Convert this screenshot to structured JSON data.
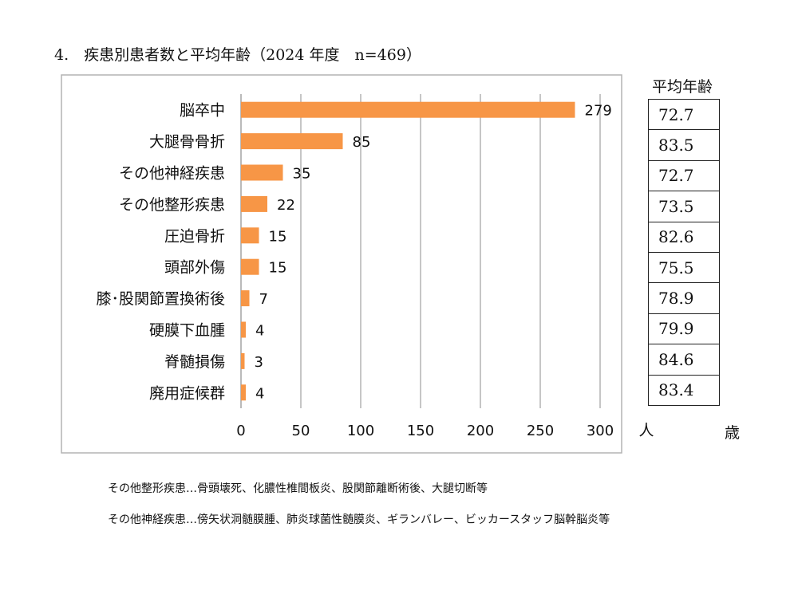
{
  "title": "4.　疾患別患者数と平均年齢（2024 年度　n=469）",
  "chart_data": {
    "type": "bar",
    "orientation": "horizontal",
    "categories": [
      "脳卒中",
      "大腿骨骨折",
      "その他神経疾患",
      "その他整形疾患",
      "圧迫骨折",
      "頭部外傷",
      "膝･股関節置換術後",
      "硬膜下血腫",
      "脊髄損傷",
      "廃用症候群"
    ],
    "values": [
      279,
      85,
      35,
      22,
      15,
      15,
      7,
      4,
      3,
      4
    ],
    "xlim": [
      0,
      300
    ],
    "x_ticks": [
      0,
      50,
      100,
      150,
      200,
      250,
      300
    ],
    "x_unit": "人",
    "bar_color": "#f79646",
    "grid": true,
    "legend": "none"
  },
  "age_table": {
    "header": "平均年齢",
    "values": [
      "72.7",
      "83.5",
      "72.7",
      "73.5",
      "82.6",
      "75.5",
      "78.9",
      "79.9",
      "84.6",
      "83.4"
    ],
    "unit": "歳"
  },
  "notes": [
    "その他整形疾患…骨頭壊死、化膿性椎間板炎、股関節離断術後、大腿切断等",
    "その他神経疾患…傍矢状洞髄膜腫、肺炎球菌性髄膜炎、ギランバレー、ビッカースタッフ脳幹脳炎等"
  ]
}
